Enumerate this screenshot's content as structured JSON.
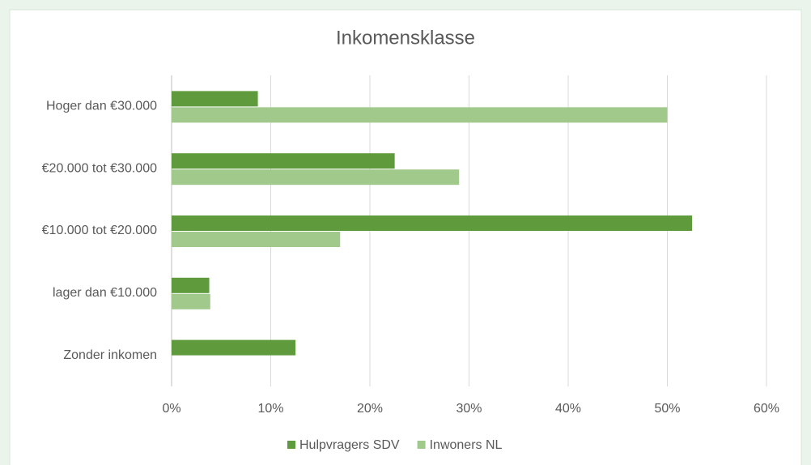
{
  "chart_data": {
    "type": "hbar",
    "title": "Inkomensklasse",
    "categories": [
      "Hoger dan €30.000",
      "€20.000 tot €30.000",
      "€10.000 tot €20.000",
      "lager dan €10.000",
      "Zonder inkomen"
    ],
    "series": [
      {
        "name": "Hulpvragers SDV",
        "color": "#5f9a3c",
        "values": [
          8.7,
          22.5,
          52.5,
          3.8,
          12.5
        ]
      },
      {
        "name": "Inwoners NL",
        "color": "#a2c98c",
        "values": [
          50,
          29,
          17,
          3.9,
          0
        ]
      }
    ],
    "xlim": [
      0,
      60
    ],
    "xticks": [
      {
        "value": 0,
        "label": "0%"
      },
      {
        "value": 10,
        "label": "10%"
      },
      {
        "value": 20,
        "label": "20%"
      },
      {
        "value": 30,
        "label": "30%"
      },
      {
        "value": 40,
        "label": "40%"
      },
      {
        "value": 50,
        "label": "50%"
      },
      {
        "value": 60,
        "label": "60%"
      }
    ],
    "grid": true,
    "legend": "bottom"
  }
}
